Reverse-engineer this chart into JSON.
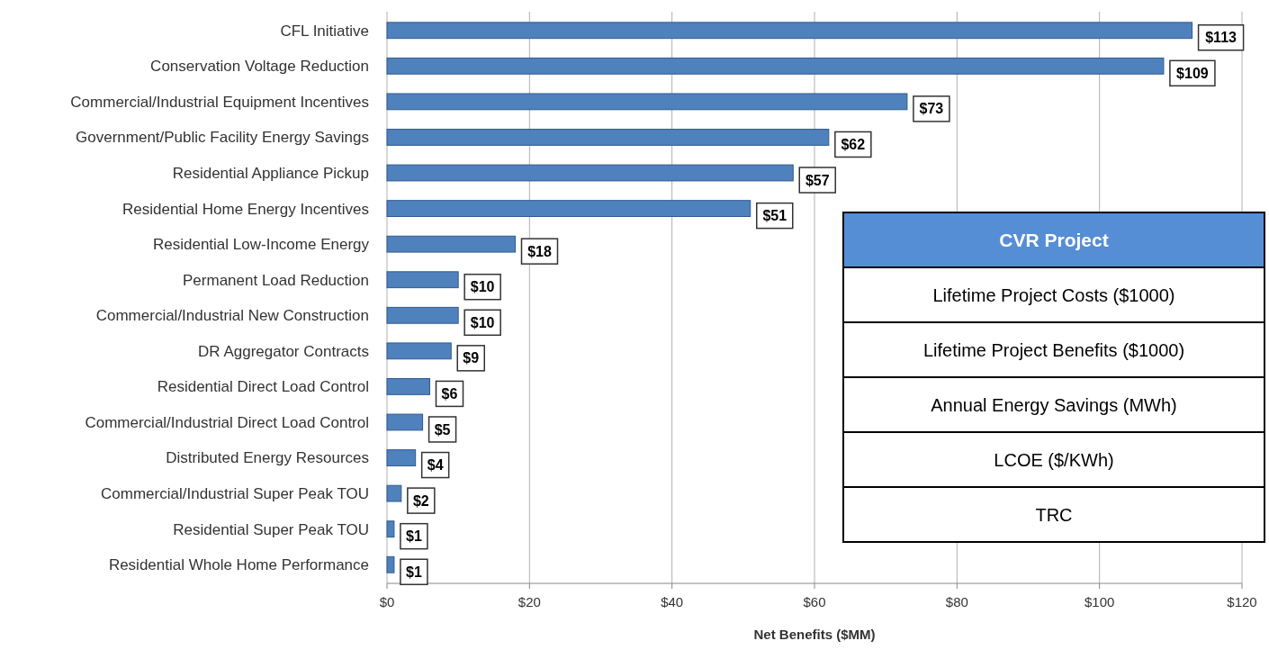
{
  "chart_data": {
    "type": "bar",
    "orientation": "horizontal",
    "xlabel": "Net Benefits ($MM)",
    "categories": [
      "CFL Initiative",
      "Conservation Voltage Reduction",
      "Commercial/Industrial Equipment Incentives",
      "Government/Public Facility Energy Savings",
      "Residential Appliance Pickup",
      "Residential Home Energy Incentives",
      "Residential Low-Income Energy",
      "Permanent Load Reduction",
      "Commercial/Industrial New Construction",
      "DR Aggregator Contracts",
      "Residential Direct Load Control",
      "Commercial/Industrial Direct Load Control",
      "Distributed Energy Resources",
      "Commercial/Industrial Super Peak TOU",
      "Residential Super Peak TOU",
      "Residential Whole Home Performance"
    ],
    "values": [
      113,
      109,
      73,
      62,
      57,
      51,
      18,
      10,
      10,
      9,
      6,
      5,
      4,
      2,
      1,
      1
    ],
    "value_labels": [
      "$113",
      "$109",
      "$73",
      "$62",
      "$57",
      "$51",
      "$18",
      "$10",
      "$10",
      "$9",
      "$6",
      "$5",
      "$4",
      "$2",
      "$1",
      "$1"
    ],
    "color": "#4f81bd",
    "xlim": [
      0,
      120
    ],
    "xticks": [
      {
        "value": 0,
        "label": "$0"
      },
      {
        "value": 20,
        "label": "$20"
      },
      {
        "value": 40,
        "label": "$40"
      },
      {
        "value": 60,
        "label": "$60"
      },
      {
        "value": 80,
        "label": "$80"
      },
      {
        "value": 100,
        "label": "$100"
      },
      {
        "value": 120,
        "label": "$120"
      }
    ],
    "grid": "x",
    "annotations": [
      "CVR Project",
      "Lifetime Project Costs ($1000)",
      "Lifetime Project Benefits ($1000)",
      "Annual Energy Savings (MWh)",
      "LCOE ($/KWh)",
      "TRC"
    ]
  }
}
